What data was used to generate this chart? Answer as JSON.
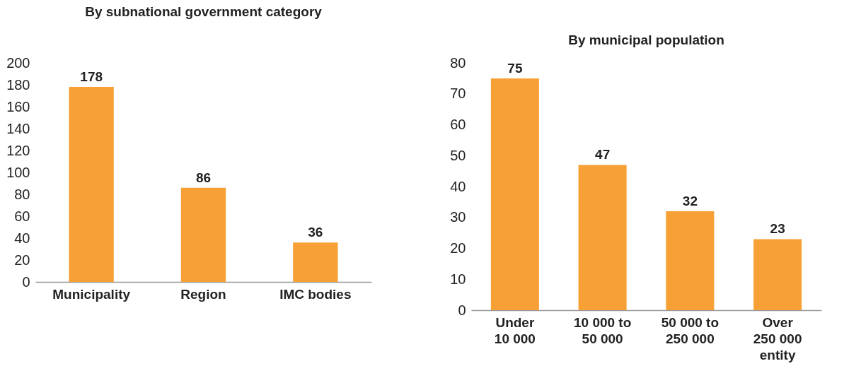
{
  "chart_data": [
    {
      "type": "bar",
      "title": "By subnational government category",
      "categories": [
        "Municipality",
        "Region",
        "IMC bodies"
      ],
      "values": [
        178,
        86,
        36
      ],
      "color": "#f7a035",
      "ylim": [
        0,
        200
      ],
      "yticks": [
        0,
        20,
        40,
        60,
        80,
        100,
        120,
        140,
        160,
        180,
        200
      ],
      "grid": false,
      "data_labels": true
    },
    {
      "type": "bar",
      "title": "By municipal population",
      "categories": [
        "Under 10 000",
        "10 000 to 50 000",
        "50 000 to 250 000",
        "Over 250 000 entity"
      ],
      "values": [
        75,
        47,
        32,
        23
      ],
      "color": "#f7a035",
      "ylim": [
        0,
        80
      ],
      "yticks": [
        0,
        10,
        20,
        30,
        40,
        50,
        60,
        70,
        80
      ],
      "grid": false,
      "data_labels": true
    }
  ]
}
